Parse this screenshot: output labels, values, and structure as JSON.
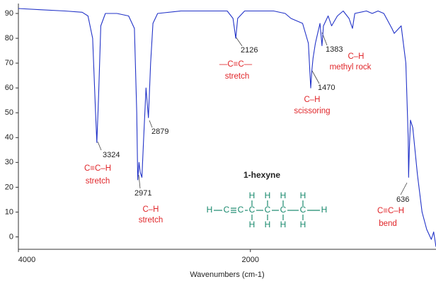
{
  "chart_data": {
    "type": "line",
    "x_label": "Wavenumbers (cm-1)",
    "x": [
      4000,
      3800,
      3600,
      3450,
      3400,
      3360,
      3335,
      3324,
      3310,
      3290,
      3250,
      3150,
      3050,
      3000,
      2980,
      2971,
      2960,
      2950,
      2935,
      2920,
      2900,
      2879,
      2860,
      2840,
      2800,
      2600,
      2400,
      2200,
      2150,
      2126,
      2110,
      2050,
      1900,
      1800,
      1700,
      1650,
      1550,
      1500,
      1480,
      1470,
      1460,
      1440,
      1420,
      1400,
      1383,
      1370,
      1330,
      1300,
      1250,
      1200,
      1150,
      1120,
      1100,
      1000,
      950,
      900,
      850,
      780,
      760,
      700,
      660,
      640,
      636,
      630,
      620,
      600,
      560,
      520,
      480,
      440,
      420,
      400
    ],
    "values": [
      92,
      91.5,
      91,
      90.5,
      89,
      80,
      50,
      38,
      55,
      85,
      90,
      90,
      89,
      84,
      50,
      23,
      30,
      26,
      24,
      40,
      60,
      48,
      70,
      86,
      90,
      91,
      91,
      91,
      88,
      80,
      88,
      91,
      91,
      91,
      90,
      88,
      86,
      78,
      60,
      67,
      72,
      78,
      82,
      86,
      77,
      85,
      89,
      85,
      89,
      91,
      88,
      84,
      90,
      91,
      90,
      91,
      90,
      84,
      82,
      85,
      70,
      40,
      24,
      35,
      47,
      44,
      25,
      10,
      3,
      -1,
      2,
      -4
    ],
    "color": "#2233c8",
    "xlim": [
      4000,
      400
    ],
    "xticks": [
      4000,
      2000
    ],
    "ylim": [
      -5,
      94
    ],
    "yticks": [
      0,
      10,
      20,
      30,
      40,
      50,
      60,
      70,
      80,
      90
    ],
    "peaks": [
      3324,
      2971,
      2879,
      2126,
      1470,
      1383,
      636
    ],
    "annotations": {
      "alkyne_ch": [
        "C≡C–H",
        "stretch"
      ],
      "ch_stretch": [
        "C–H",
        "stretch"
      ],
      "cc_triple": [
        "—C≡C—",
        "stretch"
      ],
      "scissor": [
        "C–H",
        "scissoring"
      ],
      "methyl": [
        "C–H",
        "methyl rock"
      ],
      "bend": [
        "C≡C–H",
        "bend"
      ]
    },
    "compound": "1-hexyne",
    "structure": {
      "chain": [
        "H",
        "C",
        "C",
        "C",
        "C",
        "C",
        "C",
        "H"
      ],
      "top_h": [
        "H",
        "H",
        "H",
        "H"
      ],
      "bottom_h": [
        "H",
        "H",
        "H",
        "H"
      ]
    }
  }
}
